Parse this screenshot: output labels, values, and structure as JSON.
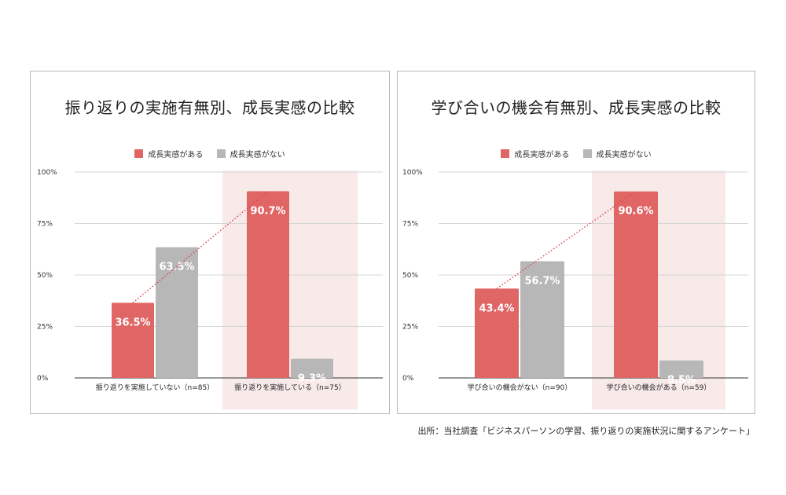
{
  "source_note": "出所：当社調査「ビジネスパーソンの学習、振り返りの実施状況に関するアンケート」",
  "colors": {
    "red": "#e06666",
    "gray": "#b7b7b7",
    "highlight": "#f9eaea",
    "dotted": "#e04848"
  },
  "chart_data": [
    {
      "type": "bar",
      "title": "振り返りの実施有無別、成長実感の比較",
      "legend": [
        "成長実感がある",
        "成長実感がない"
      ],
      "legend_position": "top",
      "categories": [
        "振り返りを実施していない（n=85）",
        "振り返りを実施している（n=75）"
      ],
      "series": [
        {
          "name": "成長実感がある",
          "values": [
            36.5,
            90.7
          ],
          "labels": [
            "36.5%",
            "90.7%"
          ]
        },
        {
          "name": "成長実感がない",
          "values": [
            63.5,
            9.3
          ],
          "labels": [
            "63.5%",
            "9.3%"
          ]
        }
      ],
      "yticks": [
        "0%",
        "25%",
        "50%",
        "75%",
        "100%"
      ],
      "ylim": [
        0,
        100
      ],
      "grid": true,
      "highlight_category": 1,
      "trend_line": "dotted line from first to second 成長実感がある bar"
    },
    {
      "type": "bar",
      "title": "学び合いの機会有無別、成長実感の比較",
      "legend": [
        "成長実感がある",
        "成長実感がない"
      ],
      "legend_position": "top",
      "categories": [
        "学び合いの機会がない（n=90）",
        "学び合いの機会がある（n=59）"
      ],
      "series": [
        {
          "name": "成長実感がある",
          "values": [
            43.4,
            90.6
          ],
          "labels": [
            "43.4%",
            "90.6%"
          ]
        },
        {
          "name": "成長実感がない",
          "values": [
            56.7,
            8.5
          ],
          "labels": [
            "56.7%",
            "8.5%"
          ]
        }
      ],
      "yticks": [
        "0%",
        "25%",
        "50%",
        "75%",
        "100%"
      ],
      "ylim": [
        0,
        100
      ],
      "grid": true,
      "highlight_category": 1,
      "trend_line": "dotted line from first to second 成長実感がある bar"
    }
  ]
}
